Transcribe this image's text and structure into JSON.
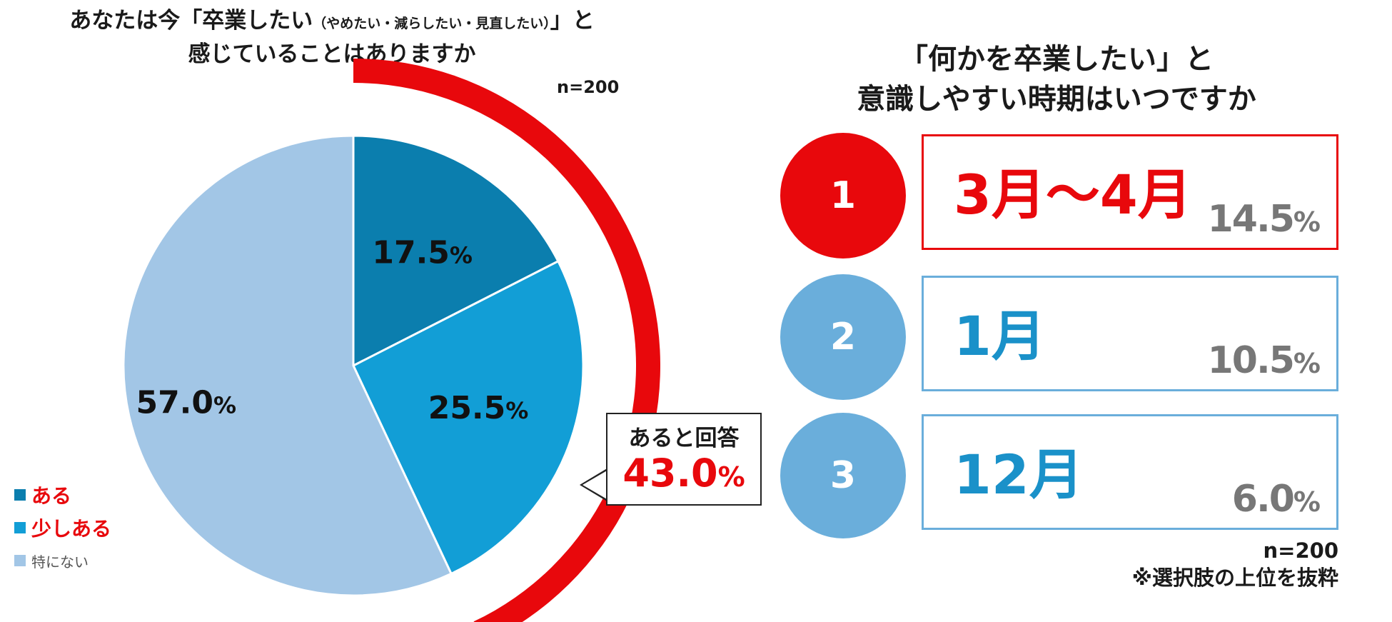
{
  "left": {
    "title_line1_main": "あなたは今「卒業したい",
    "title_line1_small": "（やめたい・減らしたい・見直したい）",
    "title_line1_end": "」と",
    "title_line2": "感じていることはありますか",
    "n_label": "n=200",
    "callout_label": "あると回答",
    "callout_value": "43.0",
    "callout_unit": "%"
  },
  "chart_data": [
    {
      "type": "pie",
      "slices": [
        {
          "label": "ある",
          "value": 17.5,
          "color": "#0b7eae"
        },
        {
          "label": "少しある",
          "value": 25.5,
          "color": "#129ed6"
        },
        {
          "label": "特にない",
          "value": 57.0,
          "color": "#a2c6e6"
        }
      ],
      "value_labels": [
        {
          "num": "17.5",
          "unit": "%"
        },
        {
          "num": "25.5",
          "unit": "%"
        },
        {
          "num": "57.0",
          "unit": "%"
        }
      ],
      "highlight_arc": {
        "covers": [
          "ある",
          "少しある"
        ],
        "color": "#e8080c"
      }
    }
  ],
  "legend": [
    {
      "label": "ある",
      "color": "#0b7eae",
      "emphasis": true
    },
    {
      "label": "少しある",
      "color": "#129ed6",
      "emphasis": true
    },
    {
      "label": "特にない",
      "color": "#a2c6e6",
      "emphasis": false
    }
  ],
  "right": {
    "title_line1": "「何かを卒業したい」と",
    "title_line2": "意識しやすい時期はいつですか",
    "ranks": [
      {
        "rank": "1",
        "label": "3月～4月",
        "num": "14.5",
        "unit": "%",
        "circle_color": "#e8080c",
        "box_color": "#e8080c",
        "label_color": "#e8080c"
      },
      {
        "rank": "2",
        "label": "1月",
        "num": "10.5",
        "unit": "%",
        "circle_color": "#6aaedb",
        "box_color": "#6aaedb",
        "label_color": "#1a91c9"
      },
      {
        "rank": "3",
        "label": "12月",
        "num": "6.0",
        "unit": "%",
        "circle_color": "#6aaedb",
        "box_color": "#6aaedb",
        "label_color": "#1a91c9"
      }
    ],
    "n_label": "n=200",
    "note": "※選択肢の上位を抜粋"
  }
}
